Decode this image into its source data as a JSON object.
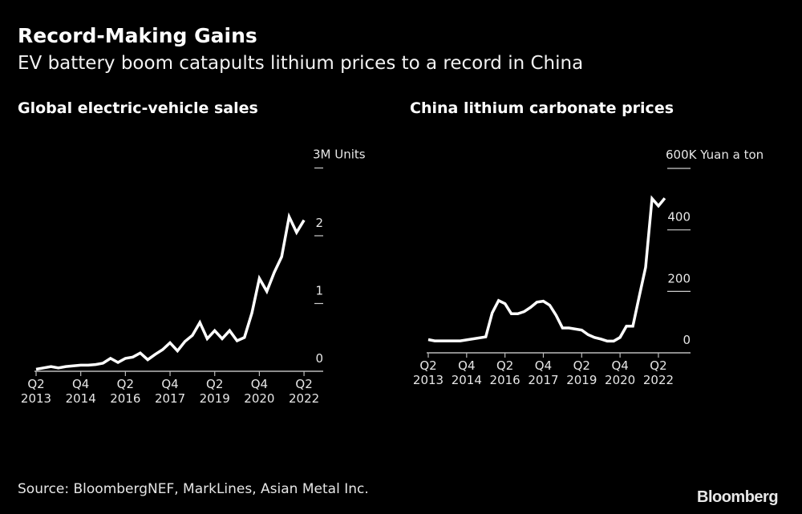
{
  "title": "Record-Making Gains",
  "subtitle": "EV battery boom catapults lithium prices to a record in China",
  "source": "Source: BloombergNEF, MarkLines, Asian Metal Inc.",
  "logo": "Bloomberg",
  "colors": {
    "background": "#000000",
    "line": "#ffffff",
    "text": "#e6e6e6"
  },
  "chart_data": [
    {
      "type": "line",
      "title": "Global electric-vehicle sales",
      "unit_label": "3M Units",
      "ylim": [
        0,
        3
      ],
      "yticks": [
        {
          "value": 3,
          "label": "3M Units"
        },
        {
          "value": 2,
          "label": "2"
        },
        {
          "value": 1,
          "label": "1"
        },
        {
          "value": 0,
          "label": "0"
        }
      ],
      "xticks": [
        {
          "x": "2013-Q2",
          "q": "Q2",
          "year": "2013"
        },
        {
          "x": "2014-Q4",
          "q": "Q4",
          "year": "2014"
        },
        {
          "x": "2016-Q2",
          "q": "Q2",
          "year": "2016"
        },
        {
          "x": "2017-Q4",
          "q": "Q4",
          "year": "2017"
        },
        {
          "x": "2019-Q2",
          "q": "Q2",
          "year": "2019"
        },
        {
          "x": "2020-Q4",
          "q": "Q4",
          "year": "2020"
        },
        {
          "x": "2022-Q2",
          "q": "Q2",
          "year": "2022"
        }
      ],
      "x": [
        "2013-Q2",
        "2013-Q3",
        "2013-Q4",
        "2014-Q1",
        "2014-Q2",
        "2014-Q3",
        "2014-Q4",
        "2015-Q1",
        "2015-Q2",
        "2015-Q3",
        "2015-Q4",
        "2016-Q1",
        "2016-Q2",
        "2016-Q3",
        "2016-Q4",
        "2017-Q1",
        "2017-Q2",
        "2017-Q3",
        "2017-Q4",
        "2018-Q1",
        "2018-Q2",
        "2018-Q3",
        "2018-Q4",
        "2019-Q1",
        "2019-Q2",
        "2019-Q3",
        "2019-Q4",
        "2020-Q1",
        "2020-Q2",
        "2020-Q3",
        "2020-Q4",
        "2021-Q1",
        "2021-Q2",
        "2021-Q3",
        "2021-Q4",
        "2022-Q1",
        "2022-Q2"
      ],
      "values": [
        0.03,
        0.05,
        0.07,
        0.05,
        0.07,
        0.08,
        0.09,
        0.09,
        0.1,
        0.12,
        0.19,
        0.13,
        0.19,
        0.21,
        0.27,
        0.17,
        0.25,
        0.32,
        0.42,
        0.3,
        0.44,
        0.53,
        0.72,
        0.48,
        0.6,
        0.48,
        0.6,
        0.45,
        0.5,
        0.86,
        1.37,
        1.18,
        1.46,
        1.69,
        2.28,
        2.05,
        2.23
      ],
      "grid": false
    },
    {
      "type": "line",
      "title": "China lithium carbonate prices",
      "unit_label": "600K Yuan a ton",
      "ylim": [
        0,
        600
      ],
      "yticks": [
        {
          "value": 600,
          "label": "600K Yuan a ton"
        },
        {
          "value": 400,
          "label": "400"
        },
        {
          "value": 200,
          "label": "200"
        },
        {
          "value": 0,
          "label": "0"
        }
      ],
      "xticks": [
        {
          "x": "2013-04",
          "q": "Q2",
          "year": "2013"
        },
        {
          "x": "2014-10",
          "q": "Q4",
          "year": "2014"
        },
        {
          "x": "2016-04",
          "q": "Q2",
          "year": "2016"
        },
        {
          "x": "2017-10",
          "q": "Q4",
          "year": "2017"
        },
        {
          "x": "2019-04",
          "q": "Q2",
          "year": "2019"
        },
        {
          "x": "2020-10",
          "q": "Q4",
          "year": "2020"
        },
        {
          "x": "2022-04",
          "q": "Q2",
          "year": "2022"
        }
      ],
      "x": [
        "2013-04",
        "2013-07",
        "2014-07",
        "2015-07",
        "2015-10",
        "2016-01",
        "2016-04",
        "2016-07",
        "2016-10",
        "2017-01",
        "2017-04",
        "2017-07",
        "2017-10",
        "2018-01",
        "2018-04",
        "2018-07",
        "2018-10",
        "2019-04",
        "2019-07",
        "2019-10",
        "2020-01",
        "2020-04",
        "2020-07",
        "2020-10",
        "2021-01",
        "2021-04",
        "2021-07",
        "2021-10",
        "2022-01",
        "2022-04",
        "2022-07"
      ],
      "values": [
        43,
        39,
        39,
        52,
        130,
        170,
        160,
        127,
        127,
        134,
        148,
        165,
        168,
        155,
        122,
        81,
        81,
        74,
        59,
        50,
        45,
        38,
        38,
        50,
        87,
        87,
        183,
        278,
        502,
        478,
        503
      ],
      "grid": false
    }
  ]
}
